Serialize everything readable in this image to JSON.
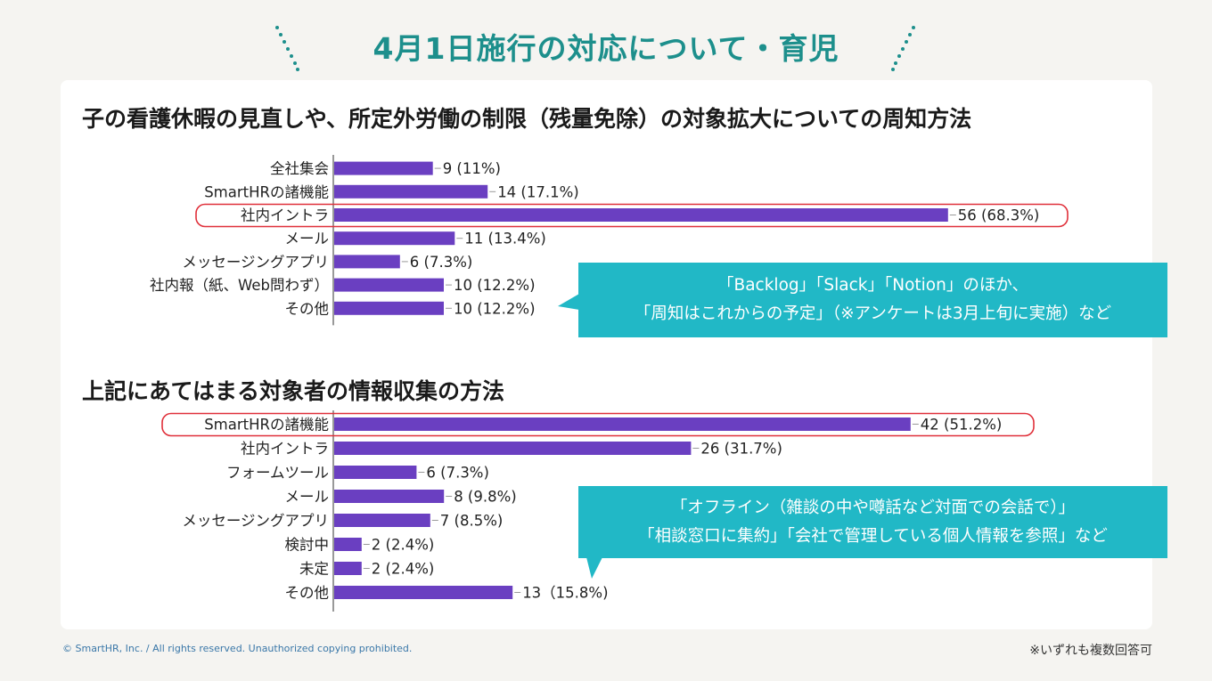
{
  "page": {
    "title": "4月1日施行の対応について・育児",
    "footer": "© SmartHR, Inc. / All rights reserved. Unauthorized copying prohibited.",
    "note": "※いずれも複数回答可"
  },
  "colors": {
    "bar": "#6a3fc1",
    "title": "#1d8f8c",
    "callout": "#21b8c6",
    "highlight": "#e0303a"
  },
  "callouts": {
    "first": [
      "「Backlog」「Slack」「Notion」のほか、",
      "「周知はこれからの予定」（※アンケートは3月上旬に実施）など"
    ],
    "second": [
      "「オフライン（雑談の中や噂話など対面での会話で）」",
      "「相談窓口に集約」「会社で管理している個人情報を参照」など"
    ]
  },
  "chart_data": [
    {
      "type": "bar",
      "orientation": "horizontal",
      "title": "子の看護休暇の見直しや、所定外労働の制限（残量免除）の対象拡大についての周知方法",
      "categories": [
        "全社集会",
        "SmartHRの諸機能",
        "社内イントラ",
        "メール",
        "メッセージングアプリ",
        "社内報（紙、Web問わず）",
        "その他"
      ],
      "values": [
        9,
        14,
        56,
        11,
        6,
        10,
        10
      ],
      "labels": [
        "9 (11%)",
        "14 (17.1%)",
        "56 (68.3%)",
        "11 (13.4%)",
        "6 (7.3%)",
        "10 (12.2%)",
        "10 (12.2%)"
      ],
      "highlight": "社内イントラ"
    },
    {
      "type": "bar",
      "orientation": "horizontal",
      "title": "上記にあてはまる対象者の情報収集の方法",
      "categories": [
        "SmartHRの諸機能",
        "社内イントラ",
        "フォームツール",
        "メール",
        "メッセージングアプリ",
        "検討中",
        "未定",
        "その他"
      ],
      "values": [
        42,
        26,
        6,
        8,
        7,
        2,
        2,
        13
      ],
      "labels": [
        "42 (51.2%)",
        "26 (31.7%)",
        "6 (7.3%)",
        "8 (9.8%)",
        "7 (8.5%)",
        "2 (2.4%)",
        "2 (2.4%)",
        "13（15.8%)"
      ],
      "highlight": "SmartHRの諸機能"
    }
  ]
}
